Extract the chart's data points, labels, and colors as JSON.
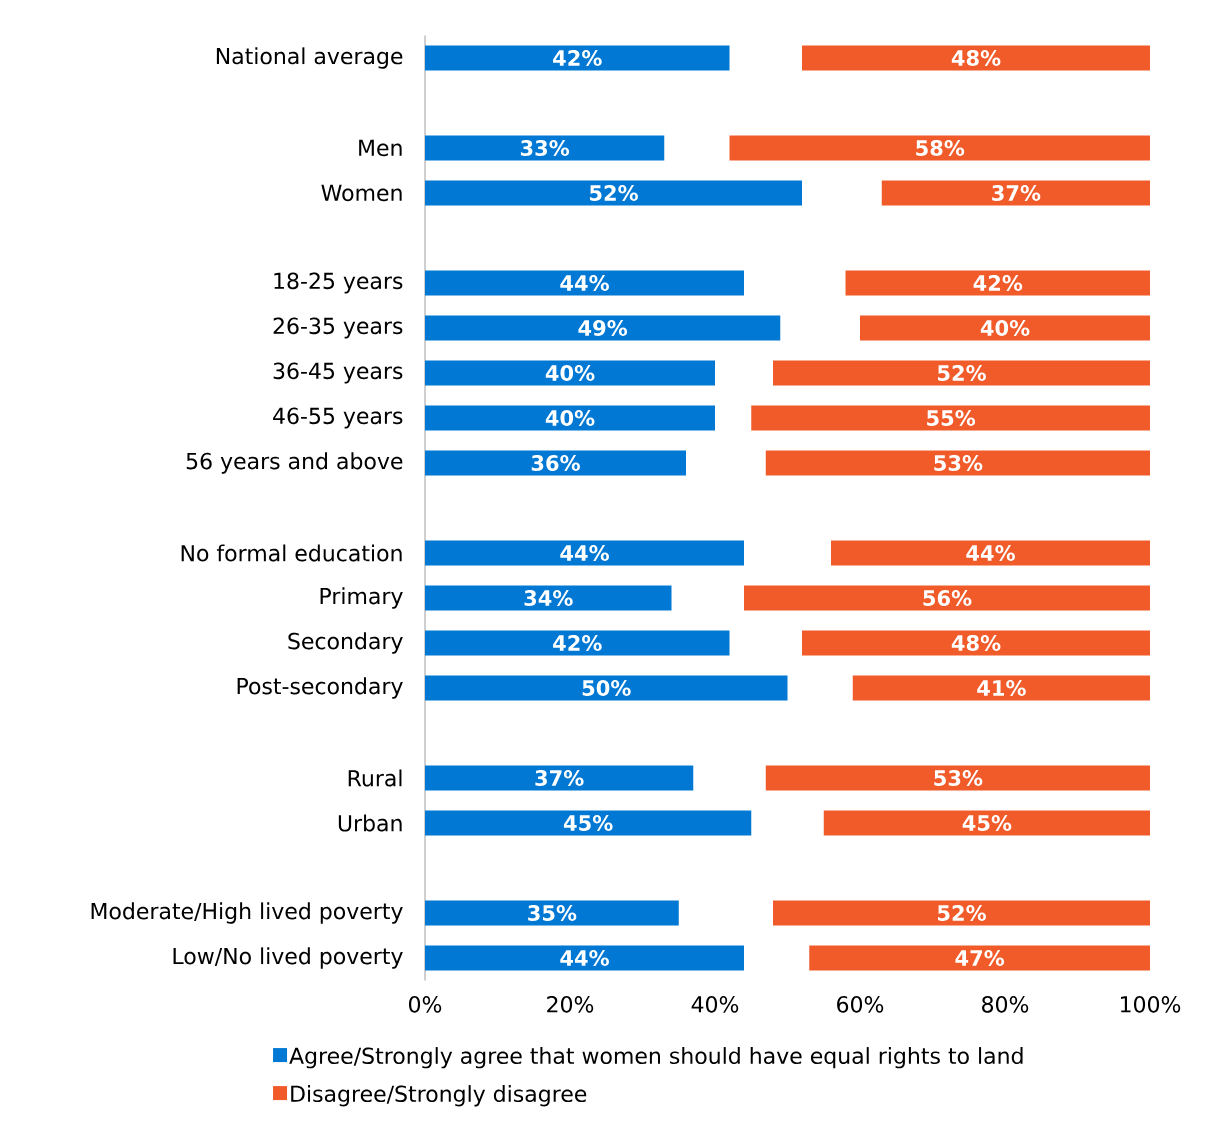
{
  "chart_data": {
    "type": "bar",
    "orientation": "horizontal",
    "categories": [
      "National average",
      null,
      "Men",
      "Women",
      null,
      "18-25 years",
      "26-35 years",
      "36-45 years",
      "46-55 years",
      "56 years and above",
      null,
      "No formal education",
      "Primary",
      "Secondary",
      "Post-secondary",
      null,
      "Rural",
      "Urban",
      null,
      "Moderate/High lived poverty",
      "Low/No lived poverty"
    ],
    "series": [
      {
        "name": "Agree/Strongly agree that women should have equal rights to land",
        "color": "#0078d4",
        "base": [
          0,
          null,
          0,
          0,
          null,
          0,
          0,
          0,
          0,
          0,
          null,
          0,
          0,
          0,
          0,
          null,
          0,
          0,
          null,
          0,
          0
        ],
        "values": [
          42,
          null,
          33,
          52,
          null,
          44,
          49,
          40,
          40,
          36,
          null,
          44,
          34,
          42,
          50,
          null,
          37,
          45,
          null,
          35,
          44
        ],
        "value_labels": [
          "42%",
          null,
          "33%",
          "52%",
          null,
          "44%",
          "49%",
          "40%",
          "40%",
          "36%",
          null,
          "44%",
          "34%",
          "42%",
          "50%",
          null,
          "37%",
          "45%",
          null,
          "35%",
          "44%"
        ]
      },
      {
        "name": "Disagree/Strongly disagree",
        "color": "#f15a29",
        "values": [
          48,
          null,
          58,
          37,
          null,
          42,
          40,
          52,
          55,
          53,
          null,
          44,
          56,
          48,
          41,
          null,
          53,
          45,
          null,
          52,
          47
        ],
        "base": [
          52,
          null,
          42,
          63,
          null,
          58,
          60,
          48,
          45,
          47,
          null,
          56,
          44,
          52,
          59,
          null,
          47,
          55,
          null,
          48,
          53
        ],
        "value_labels": [
          "48%",
          null,
          "58%",
          "37%",
          null,
          "42%",
          "40%",
          "52%",
          "55%",
          "53%",
          null,
          "44%",
          "56%",
          "48%",
          "41%",
          null,
          "53%",
          "45%",
          null,
          "52%",
          "47%"
        ]
      }
    ],
    "xlim": [
      0,
      100
    ],
    "xticks": [
      {
        "value": 0,
        "label": "0%"
      },
      {
        "value": 20,
        "label": "20%"
      },
      {
        "value": 40,
        "label": "40%"
      },
      {
        "value": 60,
        "label": "60%"
      },
      {
        "value": 80,
        "label": "80%"
      },
      {
        "value": 100,
        "label": "100%"
      }
    ],
    "legend": "bottom"
  }
}
